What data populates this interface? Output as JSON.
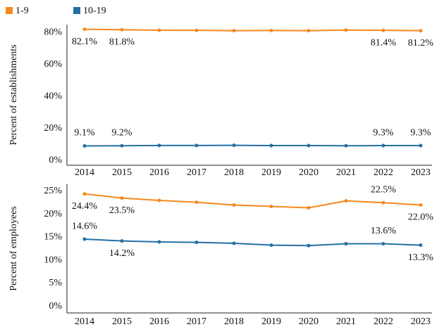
{
  "chart_data": [
    {
      "type": "line",
      "ylabel": "Percent of establishments",
      "categories": [
        "2014",
        "2015",
        "2016",
        "2017",
        "2018",
        "2019",
        "2020",
        "2021",
        "2022",
        "2023"
      ],
      "series": [
        {
          "name": "1-9",
          "color": "#f5891f",
          "values": [
            82.1,
            81.8,
            81.5,
            81.4,
            81.2,
            81.3,
            81.2,
            81.6,
            81.4,
            81.2
          ],
          "value_labels": [
            "82.1%",
            "81.8%",
            null,
            null,
            null,
            null,
            null,
            null,
            "81.4%",
            "81.2%"
          ]
        },
        {
          "name": "10-19",
          "color": "#2370a4",
          "values": [
            9.1,
            9.2,
            9.4,
            9.4,
            9.5,
            9.3,
            9.3,
            9.2,
            9.3,
            9.3
          ],
          "value_labels": [
            "9.1%",
            "9.2%",
            null,
            null,
            null,
            null,
            null,
            null,
            "9.3%",
            "9.3%"
          ]
        }
      ],
      "ylim": [
        -3,
        85
      ],
      "yticks": [
        {
          "value": 0,
          "label": "0%"
        },
        {
          "value": 20,
          "label": "20%"
        },
        {
          "value": 40,
          "label": "40%"
        },
        {
          "value": 60,
          "label": "60%"
        },
        {
          "value": 80,
          "label": "80%"
        }
      ],
      "grid": false
    },
    {
      "type": "line",
      "ylabel": "Percent of employees",
      "categories": [
        "2014",
        "2015",
        "2016",
        "2017",
        "2018",
        "2019",
        "2020",
        "2021",
        "2022",
        "2023"
      ],
      "series": [
        {
          "color": "#f5891f",
          "values": [
            24.4,
            23.5,
            23.0,
            22.6,
            22.0,
            21.7,
            21.4,
            22.9,
            22.5,
            22.0
          ],
          "value_labels": [
            "24.4%",
            "23.5%",
            null,
            null,
            null,
            null,
            null,
            null,
            "22.5%",
            "22.0%"
          ]
        },
        {
          "color": "#2370a4",
          "values": [
            14.6,
            14.2,
            14.0,
            13.9,
            13.7,
            13.3,
            13.2,
            13.6,
            13.6,
            13.3
          ],
          "value_labels": [
            "14.6%",
            "14.2%",
            null,
            null,
            null,
            null,
            null,
            null,
            "13.6%",
            "13.3%"
          ]
        }
      ],
      "ylim": [
        -1.4,
        26.5
      ],
      "yticks": [
        {
          "value": 0,
          "label": "0%"
        },
        {
          "value": 5,
          "label": "5%"
        },
        {
          "value": 10,
          "label": "10%"
        },
        {
          "value": 15,
          "label": "15%"
        },
        {
          "value": 20,
          "label": "20%"
        },
        {
          "value": 25,
          "label": "25%"
        }
      ],
      "grid": false
    }
  ]
}
